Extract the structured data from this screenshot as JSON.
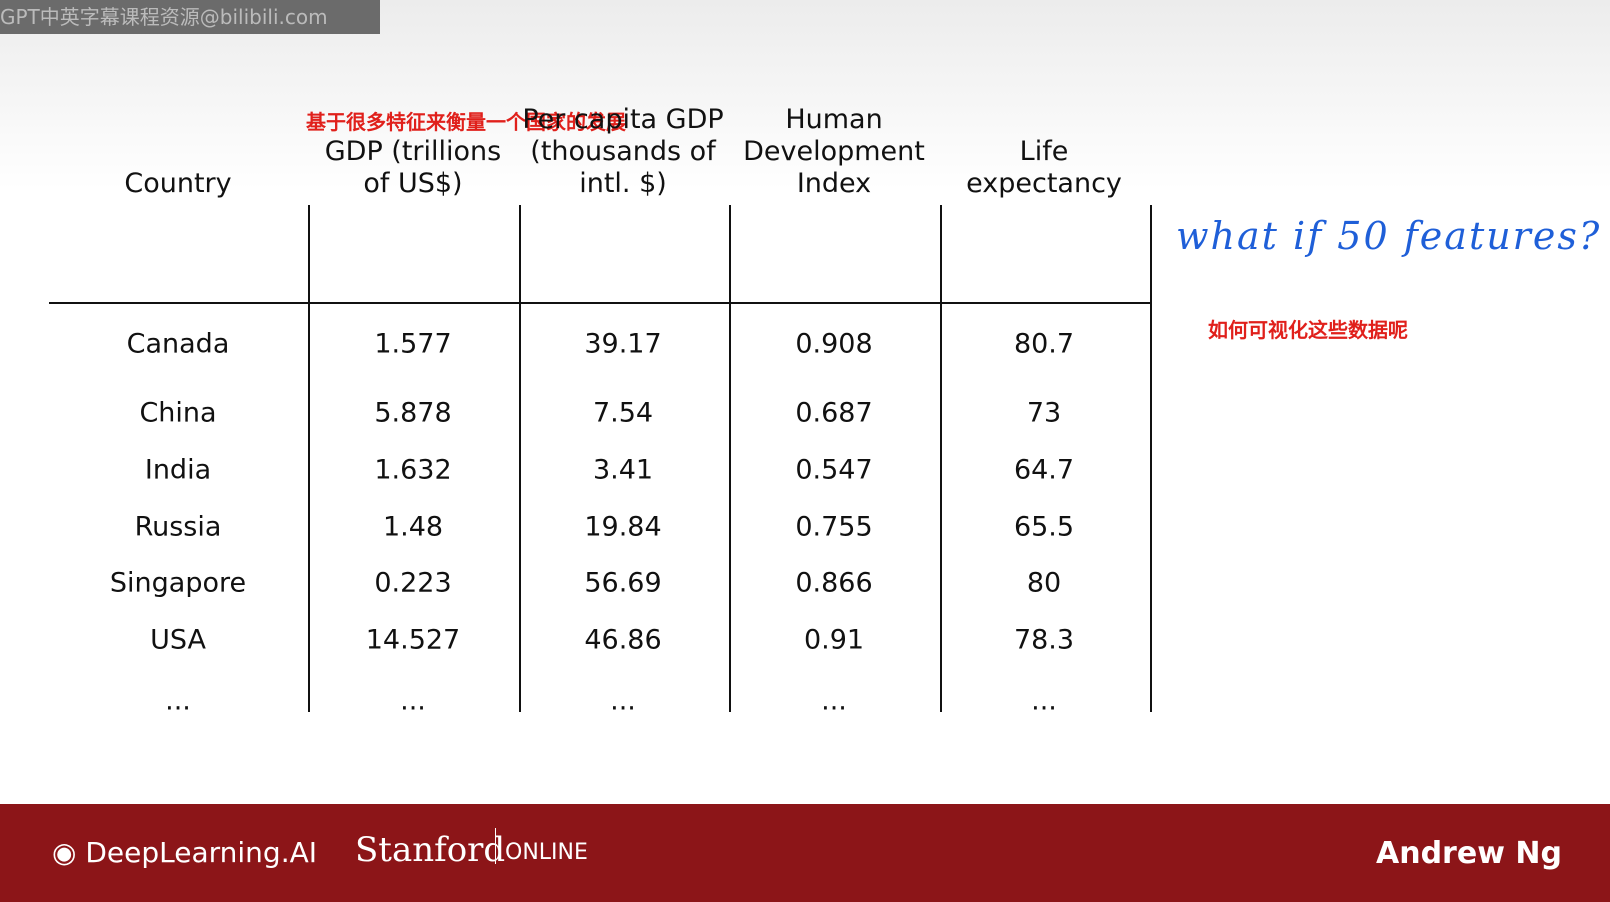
{
  "watermark": "GPT中英字幕课程资源@bilibili.com",
  "caption": "基于很多特征来衡量一个国家的发展",
  "table": {
    "headers": [
      "Country",
      "GDP (trillions of US$)",
      "Per capita GDP (thousands of intl. $)",
      "Human Development Index",
      "Life expectancy"
    ],
    "rows": [
      [
        "Canada",
        "1.577",
        "39.17",
        "0.908",
        "80.7"
      ],
      [
        "China",
        "5.878",
        "7.54",
        "0.687",
        "73"
      ],
      [
        "India",
        "1.632",
        "3.41",
        "0.547",
        "64.7"
      ],
      [
        "Russia",
        "1.48",
        "19.84",
        "0.755",
        "65.5"
      ],
      [
        "Singapore",
        "0.223",
        "56.69",
        "0.866",
        "80"
      ],
      [
        "USA",
        "14.527",
        "46.86",
        "0.91",
        "78.3"
      ],
      [
        "...",
        "...",
        "...",
        "...",
        "..."
      ]
    ]
  },
  "handwritten_note": "what if 50 features?",
  "note": "如何可视化这些数据呢",
  "footer": {
    "brand": "DeepLearning.AI",
    "university": "Stanford",
    "online": "ONLINE",
    "instructor": "Andrew Ng"
  }
}
